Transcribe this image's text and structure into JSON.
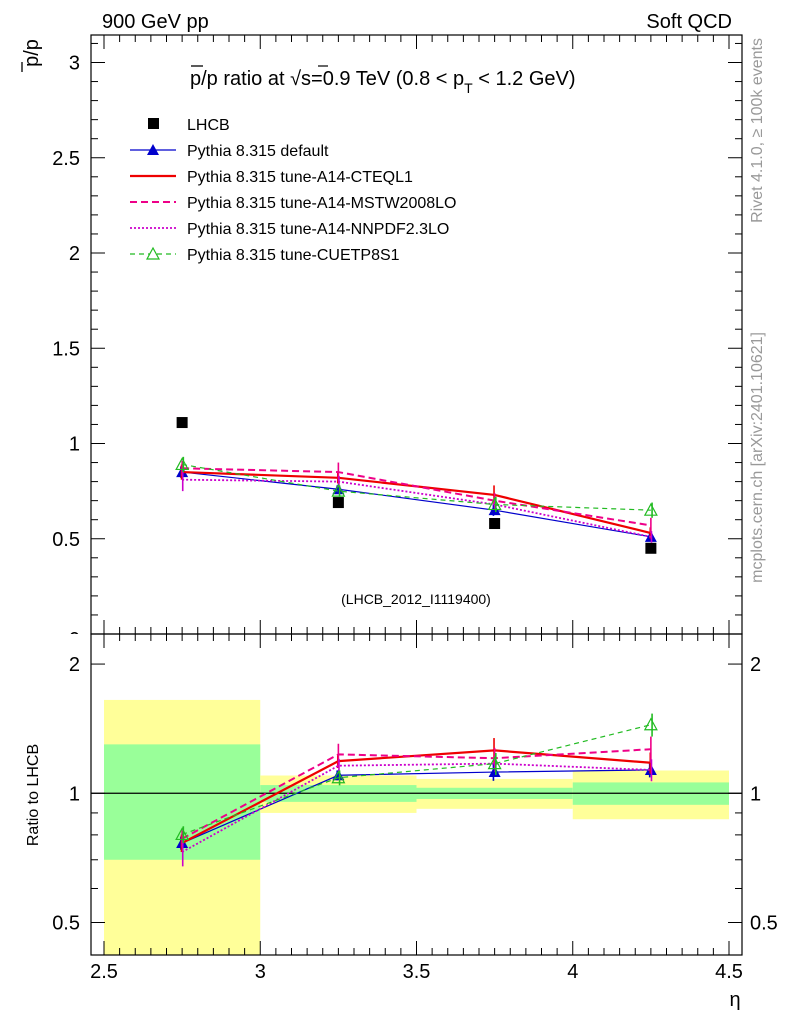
{
  "header": {
    "left": "900 GeV pp",
    "right": "Soft QCD"
  },
  "side": {
    "rivet": "Rivet 4.1.0, ≥ 100k events",
    "mcplots": "mcplots.cern.ch [arXiv:2401.10621]"
  },
  "chart_data": {
    "type": "scatter",
    "title": "p̅/p ratio at √s=0.9 TeV (0.8 < pT < 1.2 GeV)",
    "title_parts": {
      "pre": "p/p ratio at ",
      "sqrt": "√",
      "s_rest": "s=0.9 TeV (0.8 < p",
      "sub": "T",
      "post": " < 1.2 GeV)"
    },
    "analysis_id": "(LHCB_2012_I1119400)",
    "xlabel": "η",
    "ylabel_main": "p/p",
    "ylabel_ratio": "Ratio to LHCB",
    "xlim": [
      2.5,
      4.5
    ],
    "ylim_main": [
      0,
      3.15
    ],
    "ylim_ratio_log": [
      0.42,
      2.35
    ],
    "x_ticks": [
      "2.5",
      "3",
      "3.5",
      "4",
      "4.5"
    ],
    "y_ticks_main": [
      "0.5",
      "1",
      "1.5",
      "2",
      "2.5",
      "3"
    ],
    "y_ticks_ratio": [
      "0.5",
      "1",
      "2"
    ],
    "bins": [
      [
        2.5,
        3.0
      ],
      [
        3.0,
        3.5
      ],
      [
        3.5,
        4.0
      ],
      [
        4.0,
        4.5
      ]
    ],
    "x": [
      2.75,
      3.25,
      3.75,
      4.25
    ],
    "data": {
      "name": "LHCB",
      "values": [
        1.11,
        0.69,
        0.58,
        0.45
      ],
      "band_stat_rel": [
        0.3,
        0.045,
        0.03,
        0.06
      ],
      "band_tot_rel": [
        0.65,
        0.1,
        0.08,
        0.13
      ]
    },
    "series": [
      {
        "name": "Pythia 8.315 default",
        "color": "#0000cc",
        "dash": "",
        "width": 1.2,
        "marker": "triangle-filled",
        "values": [
          0.85,
          0.76,
          0.65,
          0.51
        ],
        "errors": [
          0.03,
          0.02,
          0.03,
          0.02
        ]
      },
      {
        "name": "Pythia 8.315 tune-A14-CTEQL1",
        "color": "#ee0000",
        "dash": "",
        "width": 2.2,
        "marker": "none",
        "values": [
          0.85,
          0.82,
          0.73,
          0.53
        ],
        "errors": [
          0.04,
          0.03,
          0.05,
          0.03
        ]
      },
      {
        "name": "Pythia 8.315 tune-A14-MSTW2008LO",
        "color": "#ee0088",
        "dash": "7,4",
        "width": 2.0,
        "marker": "none",
        "values": [
          0.87,
          0.85,
          0.7,
          0.57
        ],
        "errors": [
          0.04,
          0.05,
          0.04,
          0.04
        ]
      },
      {
        "name": "Pythia 8.315 tune-A14-NNPDF2.3LO",
        "color": "#cc00cc",
        "dash": "2,2",
        "width": 1.8,
        "marker": "none",
        "values": [
          0.81,
          0.8,
          0.68,
          0.51
        ],
        "errors": [
          0.06,
          0.03,
          0.03,
          0.03
        ]
      },
      {
        "name": "Pythia 8.315 tune-CUETP8S1",
        "color": "#22bb22",
        "dash": "5,4",
        "width": 1.2,
        "marker": "triangle-open",
        "values": [
          0.89,
          0.75,
          0.68,
          0.65
        ],
        "errors": [
          0.04,
          0.03,
          0.04,
          0.04
        ]
      }
    ]
  }
}
